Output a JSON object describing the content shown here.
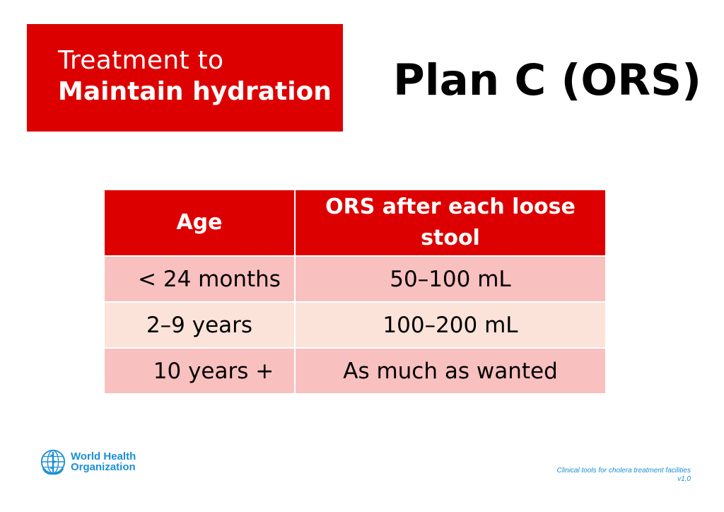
{
  "header": {
    "subtitle_line1": "Treatment to",
    "subtitle_line2": "Maintain hydration",
    "title": "Plan C (ORS)"
  },
  "table": {
    "columns": [
      "Age",
      "ORS after each loose stool"
    ],
    "rows": [
      [
        "< 24 months",
        "50–100 mL"
      ],
      [
        "2–9 years",
        "100–200 mL"
      ],
      [
        "10 years +",
        "As much as wanted"
      ]
    ]
  },
  "logo": {
    "line1": "World Health",
    "line2": "Organization",
    "icon": "who-emblem-icon"
  },
  "footer": {
    "line1": "Clinical tools for cholera treatment facilities",
    "line2": "v1.0"
  },
  "colors": {
    "accent_red": "#dd0000",
    "row_pink": "#f8c0bf",
    "row_peach": "#fbe3da",
    "who_blue": "#1b8fd6"
  }
}
